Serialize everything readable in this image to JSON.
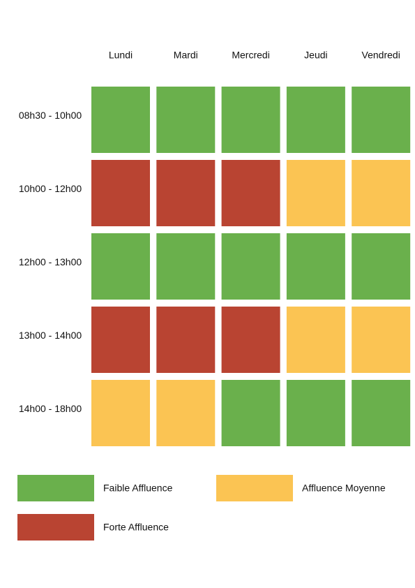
{
  "days": [
    "Lundi",
    "Mardi",
    "Mercredi",
    "Jeudi",
    "Vendredi"
  ],
  "slots": [
    "08h30 - 10h00",
    "10h00 - 12h00",
    "12h00 - 13h00",
    "13h00 - 14h00",
    "14h00 - 18h00"
  ],
  "levels": [
    {
      "label": "Faible Affluence",
      "color": "#6ab04c"
    },
    {
      "label": "Affluence Moyenne",
      "color": "#fbc453"
    },
    {
      "label": "Forte Affluence",
      "color": "#b94432"
    }
  ],
  "grid": [
    [
      0,
      0,
      0,
      0,
      0
    ],
    [
      2,
      2,
      2,
      1,
      1
    ],
    [
      0,
      0,
      0,
      0,
      0
    ],
    [
      2,
      2,
      2,
      1,
      1
    ],
    [
      1,
      1,
      0,
      0,
      0
    ]
  ]
}
